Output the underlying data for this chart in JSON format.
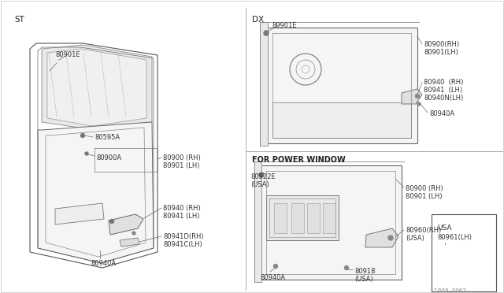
{
  "background_color": "#ffffff",
  "line_color_dark": "#444444",
  "line_color_med": "#666666",
  "line_color_light": "#888888",
  "text_color": "#333333",
  "title_st": "ST",
  "title_dx": "DX",
  "title_power": "FOR POWER WINDOW",
  "footer": "^809  0063",
  "labels": {
    "st_80901e": "80901E",
    "st_80595a": "80595A",
    "st_80900a": "80900A",
    "st_80900": "80900 (RH)",
    "st_80901": "80901 (LH)",
    "st_80940": "80940 (RH)",
    "st_80941": "80941 (LH)",
    "st_80941d": "80941D(RH)",
    "st_80941c": "80941C(LH)",
    "st_80940a": "80940A",
    "dx_80901e": "80901E",
    "dx_80900": "80900(RH)",
    "dx_80901": "80901(LH)",
    "dx_80940": "80940  (RH)",
    "dx_80941": "80941  (LH)",
    "dx_80940n": "80940N(LH)",
    "dx_80940a": "80940A",
    "pw_80922e": "80922E",
    "pw_usa1": "(USA)",
    "pw_80900": "80900 (RH)",
    "pw_80901": "80901 (LH)",
    "pw_80960": "80960(RH)",
    "pw_usa2": "(USA)",
    "pw_80961": "80961(LH)",
    "pw_usa_box": "USA",
    "pw_80918": "80918",
    "pw_usa3": "(USA)",
    "pw_80940a": "80940A"
  }
}
